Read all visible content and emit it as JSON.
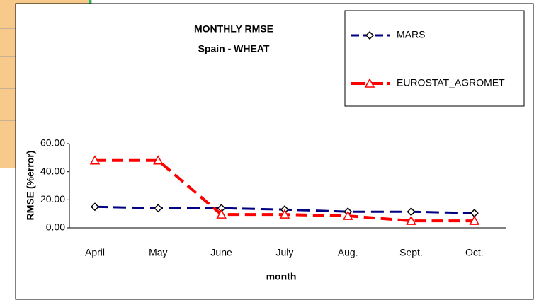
{
  "chart_data": {
    "type": "line",
    "title": "MONTHLY RMSE",
    "subtitle": "Spain - WHEAT",
    "x_label": "month",
    "y_label": "RMSE (%error)",
    "categories": [
      "April",
      "May",
      "June",
      "July",
      "Aug.",
      "Sept.",
      "Oct."
    ],
    "series": [
      {
        "name": "MARS",
        "color": "#000080",
        "marker": "diamond",
        "values": [
          15,
          14,
          14,
          13,
          11.5,
          11.5,
          10.5
        ]
      },
      {
        "name": "EUROSTAT_AGROMET",
        "color": "#ff0000",
        "marker": "triangle",
        "values": [
          48,
          48,
          9.5,
          9.5,
          8.5,
          5,
          5
        ]
      }
    ],
    "ylim": [
      0,
      60
    ],
    "yticks": [
      {
        "value": 0,
        "label": "0.00"
      },
      {
        "value": 20,
        "label": "20.00"
      },
      {
        "value": 40,
        "label": "40.00"
      },
      {
        "value": 60,
        "label": "60.00"
      }
    ],
    "grid": false,
    "legend": "top-right"
  }
}
